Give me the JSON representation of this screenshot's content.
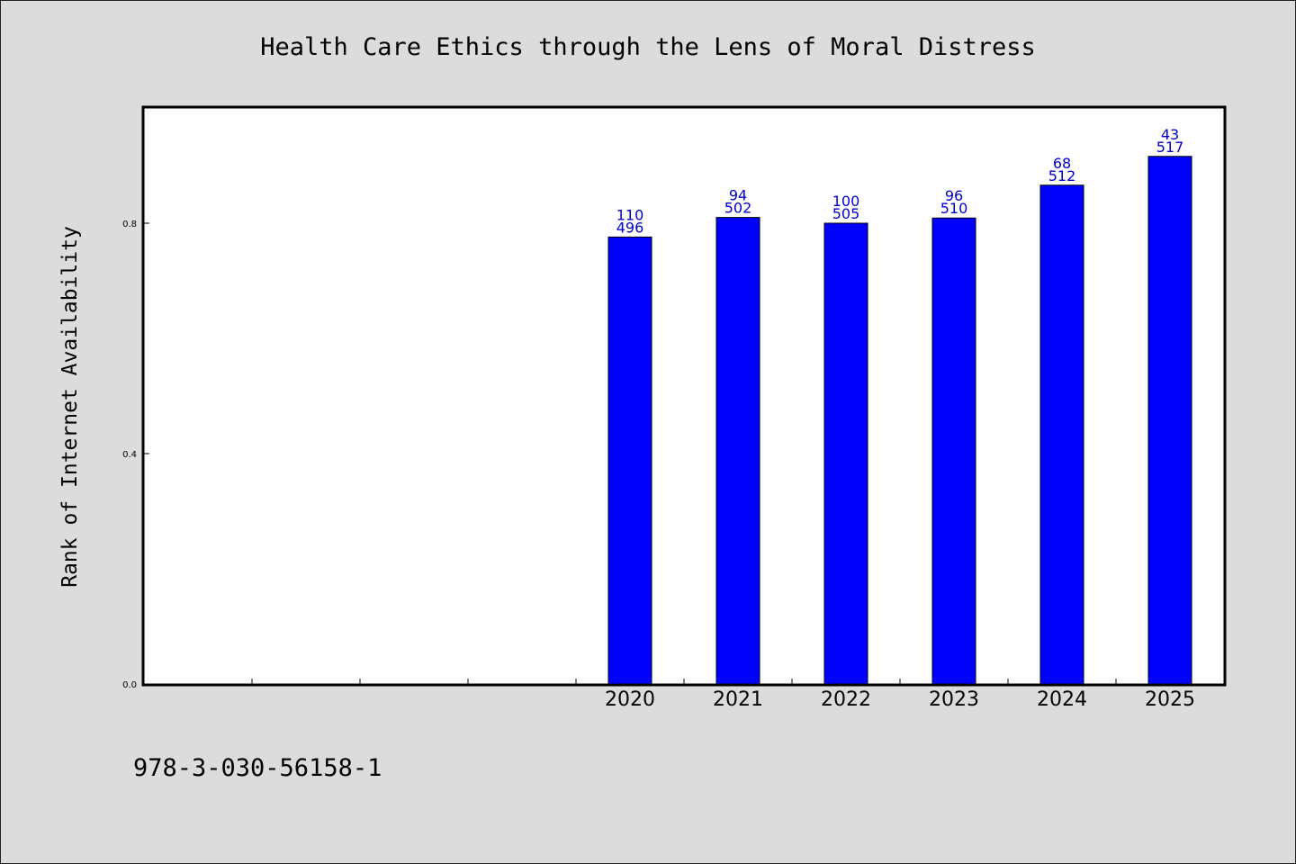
{
  "chart_data": {
    "type": "bar",
    "title": "Health Care Ethics through the Lens of Moral Distress",
    "xlabel": "",
    "ylabel": "Rank of Internet Availability",
    "categories": [
      "",
      "",
      "",
      "",
      "2020",
      "2021",
      "2022",
      "2023",
      "2024",
      "2025"
    ],
    "values": [
      null,
      null,
      null,
      null,
      0.776,
      0.81,
      0.8,
      0.809,
      0.866,
      0.916
    ],
    "data_labels": [
      null,
      null,
      null,
      null,
      [
        "110",
        "496"
      ],
      [
        "94",
        "502"
      ],
      [
        "100",
        "505"
      ],
      [
        "96",
        "510"
      ],
      [
        "68",
        "512"
      ],
      [
        "43",
        "517"
      ]
    ],
    "ylim": [
      0,
      1.0
    ],
    "yticks": [
      "0.0",
      "0.4",
      "0.8"
    ],
    "ytick_values": [
      0.0,
      0.4,
      0.8
    ],
    "grid": false,
    "colors": {
      "bar": "#0000ff",
      "bar_edge": "#000000",
      "data_label": "#0000cc",
      "background": "#dcdcdc",
      "plot_bg": "#ffffff"
    }
  },
  "footer": {
    "isbn": "978-3-030-56158-1"
  }
}
